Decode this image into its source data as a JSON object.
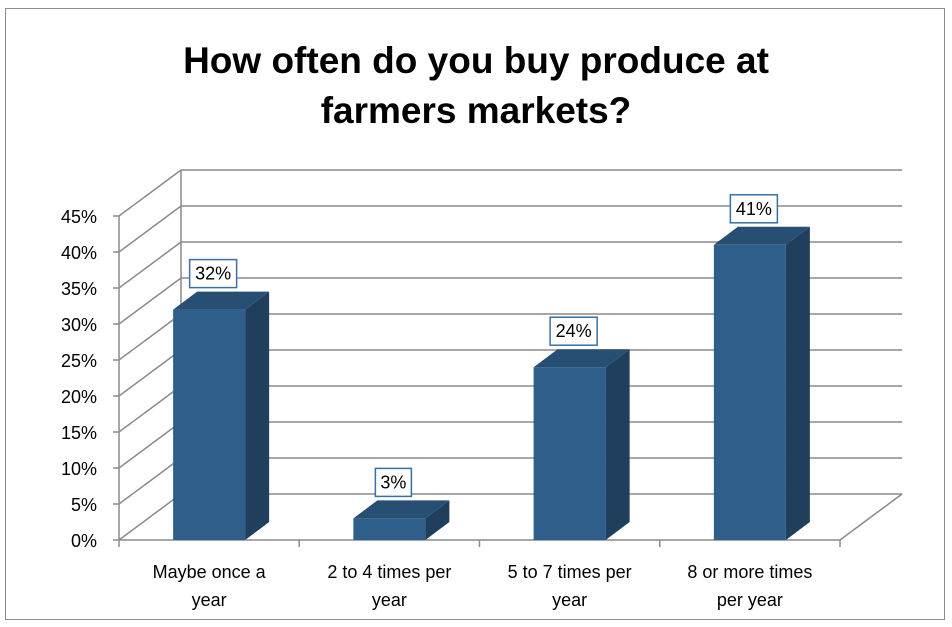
{
  "chart_data": {
    "type": "bar",
    "title": [
      "How often do you buy produce at",
      "farmers markets?"
    ],
    "categories": [
      [
        "Maybe once a",
        "year"
      ],
      [
        "2 to 4 times per",
        "year"
      ],
      [
        "5 to 7 times per",
        "year"
      ],
      [
        "8 or more times",
        "per year"
      ]
    ],
    "series": [
      {
        "values": [
          32,
          3,
          24,
          41
        ]
      }
    ],
    "data_labels": [
      "32%",
      "3%",
      "24%",
      "41%"
    ],
    "y_ticks": [
      "0%",
      "5%",
      "10%",
      "15%",
      "20%",
      "25%",
      "30%",
      "35%",
      "40%",
      "45%"
    ],
    "ylim": [
      0,
      45
    ],
    "y_unit": "%",
    "grid": true,
    "three_d": true,
    "colors": {
      "bar_front": "#2e5f8a",
      "bar_side": "#1f3f5c",
      "bar_top": "#264f73",
      "grid": "#8a8a8a",
      "label_border": "#3b6ea5"
    }
  }
}
